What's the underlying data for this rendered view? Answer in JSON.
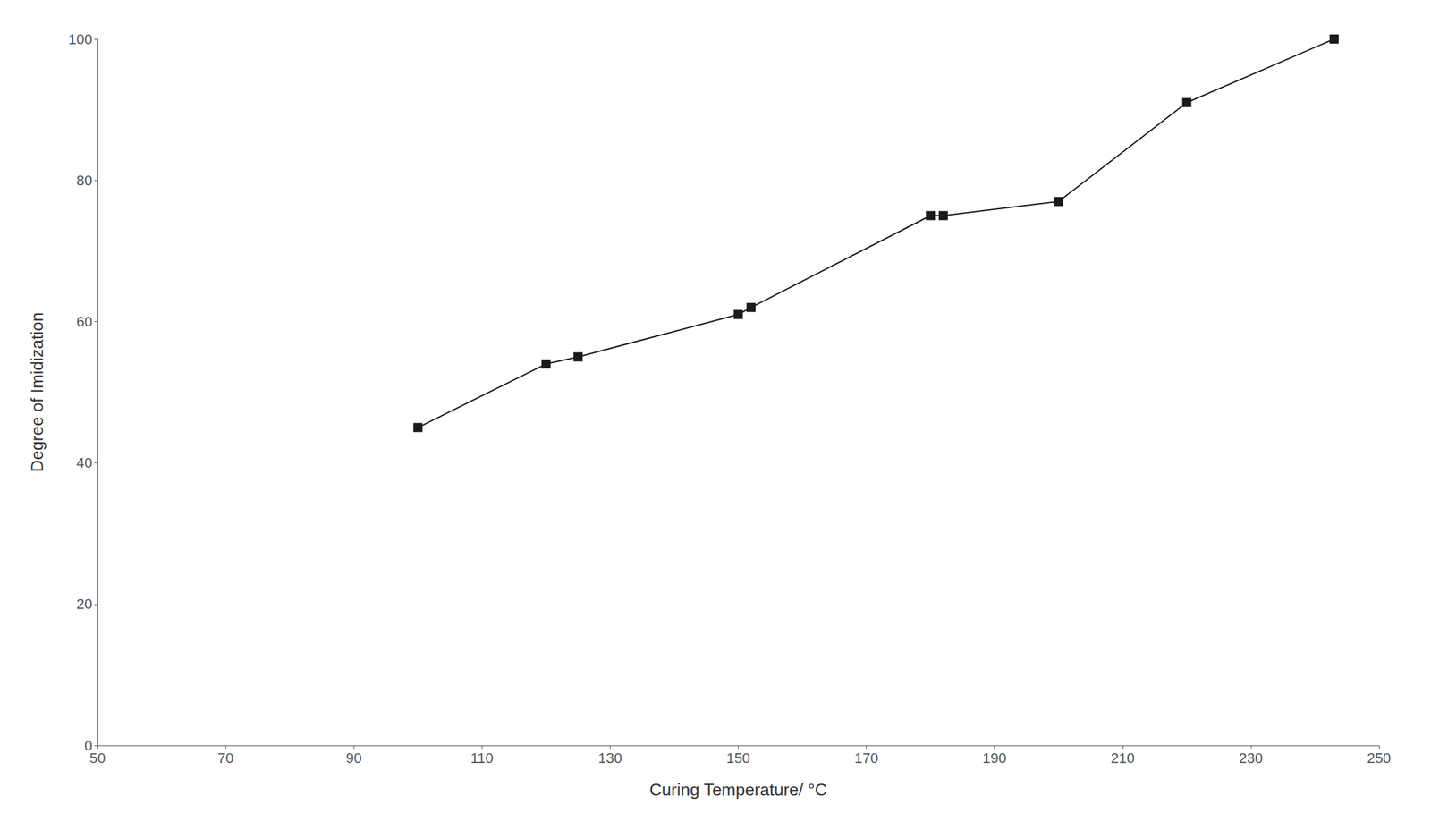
{
  "chart_data": {
    "type": "line",
    "x": [
      100,
      120,
      125,
      150,
      152,
      180,
      182,
      200,
      220,
      243
    ],
    "values": [
      45,
      54,
      55,
      61,
      62,
      75,
      75,
      77,
      91,
      100
    ],
    "xlabel": "Curing Temperature/ °C",
    "ylabel": "Degree of Imidization",
    "xlim": [
      50,
      250
    ],
    "ylim": [
      0,
      100
    ],
    "xticks": [
      50,
      70,
      90,
      110,
      130,
      150,
      170,
      190,
      210,
      230,
      250
    ],
    "yticks": [
      0,
      20,
      40,
      60,
      80,
      100
    ],
    "color": "#1a1a1a",
    "marker": "square",
    "grid": false
  }
}
